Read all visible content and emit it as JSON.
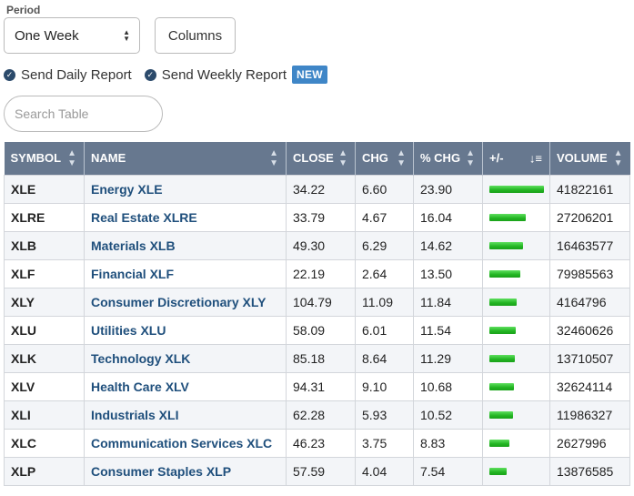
{
  "controls": {
    "period_label": "Period",
    "period_value": "One Week",
    "columns_label": "Columns",
    "search_placeholder": "Search Table"
  },
  "reports": {
    "daily_label": "Send Daily Report",
    "weekly_label": "Send Weekly Report",
    "new_badge": "NEW"
  },
  "table": {
    "headers": {
      "symbol": "SYMBOL",
      "name": "NAME",
      "close": "CLOSE",
      "chg": "CHG",
      "pct_chg": "% CHG",
      "plus_minus": "+/-",
      "volume": "VOLUME"
    },
    "bar_color": "#22b422",
    "bar_max": 23.9,
    "rows": [
      {
        "symbol": "XLE",
        "name": "Energy XLE",
        "close": "34.22",
        "chg": "6.60",
        "pct_chg": "23.90",
        "volume": "41822161"
      },
      {
        "symbol": "XLRE",
        "name": "Real Estate XLRE",
        "close": "33.79",
        "chg": "4.67",
        "pct_chg": "16.04",
        "volume": "27206201"
      },
      {
        "symbol": "XLB",
        "name": "Materials XLB",
        "close": "49.30",
        "chg": "6.29",
        "pct_chg": "14.62",
        "volume": "16463577"
      },
      {
        "symbol": "XLF",
        "name": "Financial XLF",
        "close": "22.19",
        "chg": "2.64",
        "pct_chg": "13.50",
        "volume": "79985563"
      },
      {
        "symbol": "XLY",
        "name": "Consumer Discretionary XLY",
        "close": "104.79",
        "chg": "11.09",
        "pct_chg": "11.84",
        "volume": "4164796"
      },
      {
        "symbol": "XLU",
        "name": "Utilities XLU",
        "close": "58.09",
        "chg": "6.01",
        "pct_chg": "11.54",
        "volume": "32460626"
      },
      {
        "symbol": "XLK",
        "name": "Technology XLK",
        "close": "85.18",
        "chg": "8.64",
        "pct_chg": "11.29",
        "volume": "13710507"
      },
      {
        "symbol": "XLV",
        "name": "Health Care XLV",
        "close": "94.31",
        "chg": "9.10",
        "pct_chg": "10.68",
        "volume": "32624114"
      },
      {
        "symbol": "XLI",
        "name": "Industrials XLI",
        "close": "62.28",
        "chg": "5.93",
        "pct_chg": "10.52",
        "volume": "11986327"
      },
      {
        "symbol": "XLC",
        "name": "Communication Services XLC",
        "close": "46.23",
        "chg": "3.75",
        "pct_chg": "8.83",
        "volume": "2627996"
      },
      {
        "symbol": "XLP",
        "name": "Consumer Staples XLP",
        "close": "57.59",
        "chg": "4.04",
        "pct_chg": "7.54",
        "volume": "13876585"
      }
    ]
  }
}
